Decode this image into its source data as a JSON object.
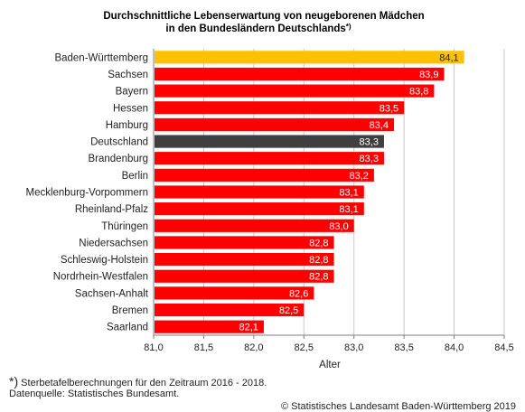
{
  "chart_data": {
    "type": "bar",
    "orientation": "horizontal",
    "title_line1": "Durchschnittliche Lebenserwartung von neugeborenen Mädchen",
    "title_line2": "in den Bundesländern Deutschlands",
    "title_marker": "*)",
    "xlabel": "Alter",
    "ylabel": "",
    "xlim": [
      81.0,
      84.5
    ],
    "x_ticks": [
      "81,0",
      "81,5",
      "82,0",
      "82,5",
      "83,0",
      "83,5",
      "84,0",
      "84,5"
    ],
    "x_tick_values": [
      81.0,
      81.5,
      82.0,
      82.5,
      83.0,
      83.5,
      84.0,
      84.5
    ],
    "grid": "vertical",
    "categories": [
      "Baden-Württemberg",
      "Sachsen",
      "Bayern",
      "Hessen",
      "Hamburg",
      "Deutschland",
      "Brandenburg",
      "Berlin",
      "Mecklenburg-Vorpommern",
      "Rheinland-Pfalz",
      "Thüringen",
      "Niedersachsen",
      "Schleswig-Holstein",
      "Nordrhein-Westfalen",
      "Sachsen-Anhalt",
      "Bremen",
      "Saarland"
    ],
    "values": [
      84.1,
      83.9,
      83.8,
      83.5,
      83.4,
      83.3,
      83.3,
      83.2,
      83.1,
      83.1,
      83.0,
      82.8,
      82.8,
      82.8,
      82.6,
      82.5,
      82.1
    ],
    "labels": [
      "84,1",
      "83,9",
      "83,8",
      "83,5",
      "83,4",
      "83,3",
      "83,3",
      "83,2",
      "83,1",
      "83,1",
      "83,0",
      "82,8",
      "82,8",
      "82,8",
      "82,6",
      "82,5",
      "82,1"
    ],
    "colors": {
      "default": "#ff0000",
      "highlight": "#ffc000",
      "national": "#3f3f3f",
      "grid": "#c8c8c8",
      "axis": "#7f7f7f"
    },
    "highlight_category": "Baden-Württemberg",
    "national_category": "Deutschland"
  },
  "footer": {
    "note_marker": "*)",
    "note_text": " Sterbetafelberechnungen für den Zeitraum 2016 - 2018.",
    "source": "Datenquelle: Statistisches Bundesamt.",
    "copyright": "© Statistisches Landesamt Baden-Württemberg 2019"
  }
}
